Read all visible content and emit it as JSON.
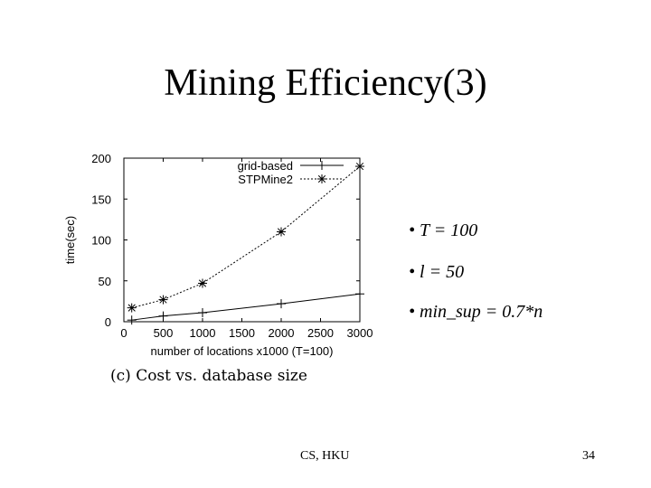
{
  "slide": {
    "title": "Mining Efficiency(3)",
    "bullets": [
      "T = 100",
      "l = 50",
      "min_sup = 0.7*n"
    ],
    "footer_left": "CS, HKU",
    "page_number": "34",
    "caption": "(c) Cost vs. database size"
  },
  "chart_data": {
    "type": "line",
    "xlabel": "number of locations x1000 (T=100)",
    "ylabel": "time(sec)",
    "xlim": [
      0,
      3000
    ],
    "ylim": [
      0,
      200
    ],
    "xticks": [
      "0",
      "500",
      "1000",
      "1500",
      "2000",
      "2500",
      "3000"
    ],
    "yticks": [
      "0",
      "50",
      "100",
      "150",
      "200"
    ],
    "x": [
      100,
      500,
      1000,
      2000,
      3000
    ],
    "series": [
      {
        "name": "grid-based",
        "marker": "plus",
        "values": [
          2,
          7,
          11,
          22,
          34
        ]
      },
      {
        "name": "STPMine2",
        "marker": "asterisk",
        "values": [
          17,
          27,
          47,
          110,
          190
        ]
      }
    ],
    "legend_position": "top-right",
    "grid": false
  }
}
